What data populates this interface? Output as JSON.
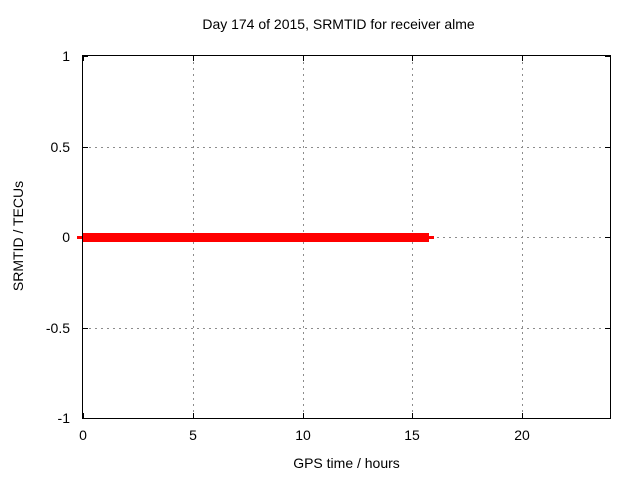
{
  "page": {
    "background": "#ffffff"
  },
  "chart_data": {
    "type": "line",
    "title": "Day 174 of 2015, SRMTID for receiver alme",
    "xlabel": "GPS time / hours",
    "ylabel": "SRMTID / TECUs",
    "xlim": [
      0,
      24
    ],
    "ylim": [
      -1,
      1
    ],
    "xticks": [
      {
        "value": 0,
        "label": "0"
      },
      {
        "value": 5,
        "label": "5"
      },
      {
        "value": 10,
        "label": "10"
      },
      {
        "value": 15,
        "label": "15"
      },
      {
        "value": 20,
        "label": "20"
      }
    ],
    "yticks": [
      {
        "value": -1,
        "label": "-1"
      },
      {
        "value": -0.5,
        "label": "-0.5"
      },
      {
        "value": 0,
        "label": "0"
      },
      {
        "value": 0.5,
        "label": "0.5"
      },
      {
        "value": 1,
        "label": "1"
      }
    ],
    "grid": true,
    "legend": "none",
    "colors": {
      "series": "#ff0000",
      "grid": "#8c8c8c",
      "border": "#000000",
      "text": "#000000",
      "background": "#ffffff"
    },
    "series": [
      {
        "name": "SRMTID",
        "color": "#ff0000",
        "y_value": 0,
        "x_range": [
          0,
          15.9
        ],
        "segments": [
          {
            "x_start": -0.27,
            "x_end": -0.05,
            "y": 0,
            "thickness_px": 3
          },
          {
            "x_start": 0,
            "x_end": 15.77,
            "y": 0,
            "thickness_px": 9
          },
          {
            "x_start": 15.77,
            "x_end": 16.0,
            "y": 0,
            "thickness_px": 3
          }
        ]
      }
    ]
  }
}
